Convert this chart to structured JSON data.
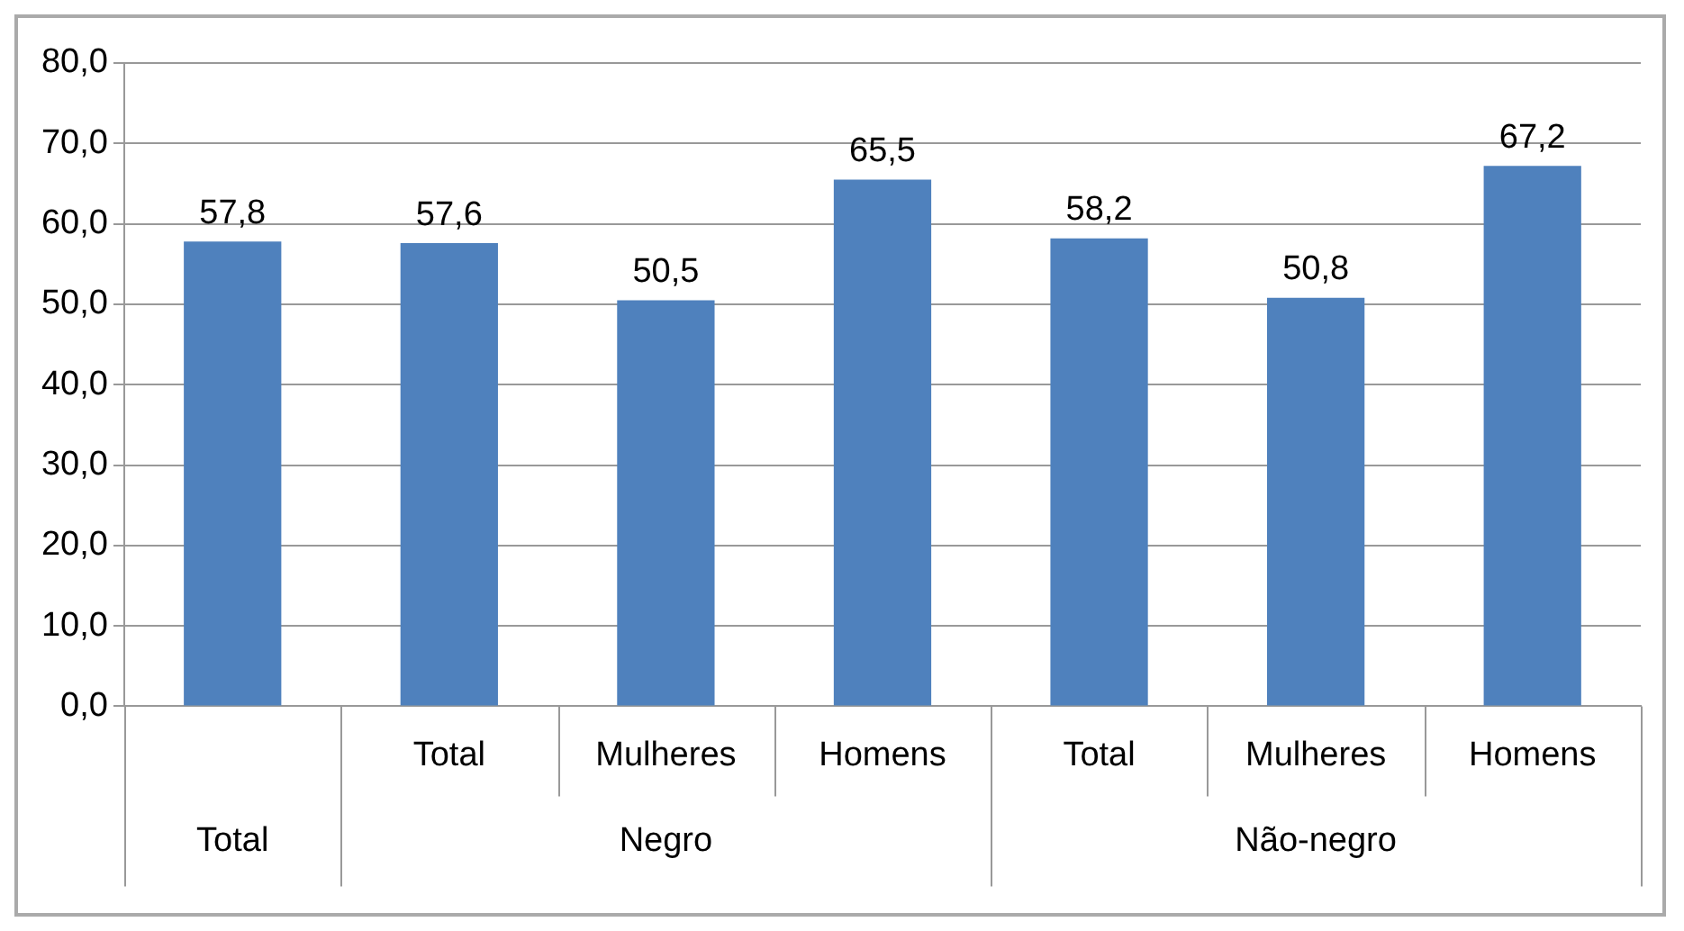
{
  "chart_data": {
    "type": "bar",
    "categories": [
      null,
      "Total",
      "Mulheres",
      "Homens",
      "Total",
      "Mulheres",
      "Homens"
    ],
    "values": [
      57.8,
      57.6,
      50.5,
      65.5,
      58.2,
      50.8,
      67.2
    ],
    "value_labels": [
      "57,8",
      "57,6",
      "50,5",
      "65,5",
      "58,2",
      "50,8",
      "67,2"
    ],
    "color": "#4f81bd",
    "ylim": [
      0,
      80
    ],
    "yticks": [
      {
        "value": 0,
        "label": "0,0"
      },
      {
        "value": 10,
        "label": "10,0"
      },
      {
        "value": 20,
        "label": "20,0"
      },
      {
        "value": 30,
        "label": "30,0"
      },
      {
        "value": 40,
        "label": "40,0"
      },
      {
        "value": 50,
        "label": "50,0"
      },
      {
        "value": 60,
        "label": "60,0"
      },
      {
        "value": 70,
        "label": "70,0"
      },
      {
        "value": 80,
        "label": "80,0"
      }
    ],
    "grid": "y",
    "legend": false,
    "annotations": [
      "Total",
      "Negro",
      "Não-negro"
    ]
  }
}
